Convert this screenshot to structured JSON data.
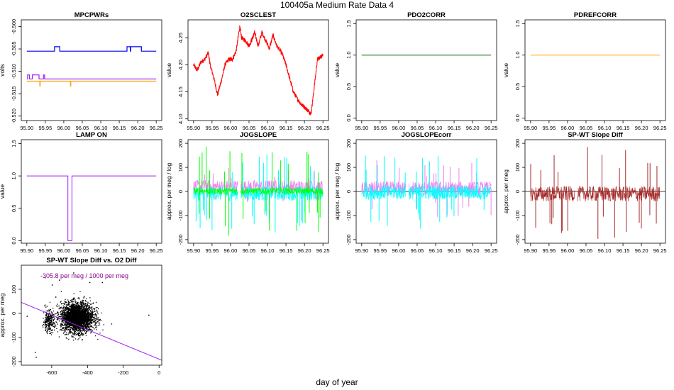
{
  "page": {
    "title": "100405a   Medium Rate Data 4",
    "xlabel": "day of year"
  },
  "chart_data": [
    {
      "id": "mpcpwrs",
      "type": "line",
      "title": "MPCPWRs",
      "ylabel": "volts",
      "xlim": [
        95.885,
        96.265
      ],
      "ylim": [
        -0.521,
        -0.4985
      ],
      "xticks": [
        95.9,
        95.95,
        96.0,
        96.05,
        96.1,
        96.15,
        96.2,
        96.25
      ],
      "xtick_labels": [
        "95.90",
        "95.95",
        "96.00",
        "96.05",
        "96.10",
        "96.15",
        "96.20",
        "96.25"
      ],
      "yticks": [
        -0.52,
        -0.515,
        -0.51,
        -0.505,
        -0.5
      ],
      "ytick_labels": [
        "-0.520",
        "-0.515",
        "-0.510",
        "-0.505",
        "-0.500"
      ],
      "series": [
        {
          "name": "blue",
          "color": "#0000ff",
          "kind": "step",
          "base": -0.5055,
          "x0": 95.9,
          "x1": 96.25,
          "events": [
            [
              95.975,
              95.989,
              -0.5045
            ],
            [
              96.171,
              96.18,
              -0.5045
            ],
            [
              96.181,
              96.21,
              -0.5045
            ]
          ]
        },
        {
          "name": "purple",
          "color": "#a020f0",
          "kind": "step",
          "base": -0.5117,
          "x0": 95.9,
          "x1": 96.25,
          "events": [
            [
              95.902,
              95.907,
              -0.5108
            ],
            [
              95.915,
              95.933,
              -0.5108
            ],
            [
              95.945,
              95.948,
              -0.5108
            ]
          ]
        },
        {
          "name": "orange",
          "color": "#ffa500",
          "kind": "step",
          "base": -0.5122,
          "x0": 95.9,
          "x1": 96.25,
          "events": [
            [
              95.935,
              95.936,
              -0.5133
            ],
            [
              96.018,
              96.019,
              -0.5133
            ]
          ]
        }
      ]
    },
    {
      "id": "o2sclest",
      "type": "line",
      "title": "O2SCLEST",
      "ylabel": "value",
      "xlim": [
        95.885,
        96.265
      ],
      "ylim": [
        4.097,
        4.283
      ],
      "xticks": [
        95.9,
        95.95,
        96.0,
        96.05,
        96.1,
        96.15,
        96.2,
        96.25
      ],
      "xtick_labels": [
        "95.90",
        "95.95",
        "96.00",
        "96.05",
        "96.10",
        "96.15",
        "96.20",
        "96.25"
      ],
      "yticks": [
        4.1,
        4.15,
        4.2,
        4.25
      ],
      "ytick_labels": [
        "4.10",
        "4.15",
        "4.20",
        "4.25"
      ],
      "series": [
        {
          "name": "O2SCLEST",
          "color": "#ff0000",
          "kind": "noisy",
          "noise": 0.004,
          "points": [
            [
              95.9,
              4.2
            ],
            [
              95.91,
              4.19
            ],
            [
              95.92,
              4.205
            ],
            [
              95.93,
              4.21
            ],
            [
              95.94,
              4.222
            ],
            [
              95.945,
              4.2
            ],
            [
              95.955,
              4.175
            ],
            [
              95.965,
              4.145
            ],
            [
              95.975,
              4.17
            ],
            [
              95.985,
              4.2
            ],
            [
              95.995,
              4.21
            ],
            [
              96.005,
              4.21
            ],
            [
              96.015,
              4.225
            ],
            [
              96.025,
              4.27
            ],
            [
              96.03,
              4.25
            ],
            [
              96.04,
              4.245
            ],
            [
              96.05,
              4.235
            ],
            [
              96.06,
              4.25
            ],
            [
              96.065,
              4.26
            ],
            [
              96.075,
              4.235
            ],
            [
              96.085,
              4.26
            ],
            [
              96.095,
              4.245
            ],
            [
              96.105,
              4.23
            ],
            [
              96.115,
              4.255
            ],
            [
              96.125,
              4.235
            ],
            [
              96.14,
              4.22
            ],
            [
              96.15,
              4.2
            ],
            [
              96.16,
              4.175
            ],
            [
              96.17,
              4.15
            ],
            [
              96.18,
              4.138
            ],
            [
              96.19,
              4.128
            ],
            [
              96.2,
              4.122
            ],
            [
              96.21,
              4.115
            ],
            [
              96.218,
              4.11
            ],
            [
              96.225,
              4.15
            ],
            [
              96.235,
              4.21
            ],
            [
              96.245,
              4.215
            ],
            [
              96.25,
              4.22
            ]
          ]
        }
      ]
    },
    {
      "id": "pdo2corr",
      "type": "line",
      "title": "PDO2CORR",
      "ylabel": "value",
      "xlim": [
        95.885,
        96.265
      ],
      "ylim": [
        -0.04,
        1.56
      ],
      "xticks": [
        95.9,
        95.95,
        96.0,
        96.05,
        96.1,
        96.15,
        96.2,
        96.25
      ],
      "xtick_labels": [
        "95.90",
        "95.95",
        "96.00",
        "96.05",
        "96.10",
        "96.15",
        "96.20",
        "96.25"
      ],
      "yticks": [
        0.0,
        0.5,
        1.0,
        1.5
      ],
      "ytick_labels": [
        "0.0",
        "0.5",
        "1.0",
        "1.5"
      ],
      "series": [
        {
          "name": "PDO2CORR",
          "color": "#006400",
          "kind": "points",
          "points": [
            [
              95.9,
              1.0
            ],
            [
              96.25,
              1.0
            ]
          ]
        }
      ]
    },
    {
      "id": "pdrefcorr",
      "type": "line",
      "title": "PDREFCORR",
      "ylabel": "value",
      "xlim": [
        95.885,
        96.265
      ],
      "ylim": [
        -0.04,
        1.56
      ],
      "xticks": [
        95.9,
        95.95,
        96.0,
        96.05,
        96.1,
        96.15,
        96.2,
        96.25
      ],
      "xtick_labels": [
        "95.90",
        "95.95",
        "96.00",
        "96.05",
        "96.10",
        "96.15",
        "96.20",
        "96.25"
      ],
      "yticks": [
        0.0,
        0.5,
        1.0,
        1.5
      ],
      "ytick_labels": [
        "0.0",
        "0.5",
        "1.0",
        "1.5"
      ],
      "series": [
        {
          "name": "PDREFCORR",
          "color": "#ffa500",
          "kind": "points",
          "points": [
            [
              95.9,
              1.0
            ],
            [
              96.25,
              1.0
            ]
          ]
        }
      ]
    },
    {
      "id": "lampon",
      "type": "line",
      "title": "LAMP ON",
      "ylabel": "value",
      "xlim": [
        95.885,
        96.265
      ],
      "ylim": [
        -0.04,
        1.56
      ],
      "xticks": [
        95.9,
        95.95,
        96.0,
        96.05,
        96.1,
        96.15,
        96.2,
        96.25
      ],
      "xtick_labels": [
        "95.90",
        "95.95",
        "96.00",
        "96.05",
        "96.10",
        "96.15",
        "96.20",
        "96.25"
      ],
      "yticks": [
        0.0,
        0.5,
        1.0,
        1.5
      ],
      "ytick_labels": [
        "0.0",
        "0.5",
        "1.0",
        "1.5"
      ],
      "series": [
        {
          "name": "LAMP ON",
          "color": "#a020f0",
          "kind": "points",
          "points": [
            [
              95.9,
              1.0
            ],
            [
              96.011,
              1.0
            ],
            [
              96.011,
              0.0
            ],
            [
              96.022,
              0.0
            ],
            [
              96.022,
              1.0
            ],
            [
              96.25,
              1.0
            ]
          ]
        }
      ]
    },
    {
      "id": "jogslope",
      "type": "line",
      "title": "JOGSLOPE",
      "ylabel": "approx. per meg / log",
      "xlim": [
        95.885,
        96.265
      ],
      "ylim": [
        -215,
        215
      ],
      "xticks": [
        95.9,
        95.95,
        96.0,
        96.05,
        96.1,
        96.15,
        96.2,
        96.25
      ],
      "xtick_labels": [
        "95.90",
        "95.95",
        "96.00",
        "96.05",
        "96.10",
        "96.15",
        "96.20",
        "96.25"
      ],
      "yticks": [
        -200,
        -100,
        0,
        100,
        200
      ],
      "ytick_labels": [
        "-200",
        "-100",
        "0",
        "100",
        "200"
      ],
      "gaps": [
        [
          96.02,
          96.027
        ]
      ],
      "series": [
        {
          "name": "violet",
          "color": "#ee82ee",
          "kind": "band",
          "center": 20,
          "spread": 28,
          "spikes": 18,
          "spikeamp": 80
        },
        {
          "name": "cyan",
          "color": "#00ffff",
          "kind": "band",
          "center": -8,
          "spread": 30,
          "spikes": 30,
          "spikeamp": 170
        },
        {
          "name": "green",
          "color": "#00ff00",
          "kind": "band",
          "center": 2,
          "spread": 14,
          "spikes": 26,
          "spikeamp": 190
        }
      ]
    },
    {
      "id": "jogslopecorr",
      "type": "line",
      "title": "JOGSLOPEcorr",
      "ylabel": "approx. per meg / log",
      "xlim": [
        95.885,
        96.265
      ],
      "ylim": [
        -215,
        215
      ],
      "xticks": [
        95.9,
        95.95,
        96.0,
        96.05,
        96.1,
        96.15,
        96.2,
        96.25
      ],
      "xtick_labels": [
        "95.90",
        "95.95",
        "96.00",
        "96.05",
        "96.10",
        "96.15",
        "96.20",
        "96.25"
      ],
      "yticks": [
        -200,
        -100,
        0,
        100,
        200
      ],
      "ytick_labels": [
        "-200",
        "-100",
        "0",
        "100",
        "200"
      ],
      "hline": 0,
      "gaps": [
        [
          96.02,
          96.027
        ]
      ],
      "series": [
        {
          "name": "violet",
          "color": "#ee82ee",
          "kind": "band",
          "center": 12,
          "spread": 30,
          "spikes": 18,
          "spikeamp": 120
        },
        {
          "name": "cyan",
          "color": "#00ffff",
          "kind": "band",
          "center": -4,
          "spread": 30,
          "spikes": 26,
          "spikeamp": 160
        }
      ]
    },
    {
      "id": "spwt",
      "type": "line",
      "title": "SP-WT Slope Diff",
      "ylabel": "approx. per meg",
      "xlim": [
        95.885,
        96.265
      ],
      "ylim": [
        -215,
        215
      ],
      "xticks": [
        95.9,
        95.95,
        96.0,
        96.05,
        96.1,
        96.15,
        96.2,
        96.25
      ],
      "xtick_labels": [
        "95.90",
        "95.95",
        "96.00",
        "96.05",
        "96.10",
        "96.15",
        "96.20",
        "96.25"
      ],
      "yticks": [
        -200,
        -100,
        0,
        100,
        200
      ],
      "ytick_labels": [
        "-200",
        "-100",
        "0",
        "100",
        "200"
      ],
      "hline": 0,
      "gaps": [
        [
          96.02,
          96.027
        ]
      ],
      "series": [
        {
          "name": "SP-WT",
          "color": "#a52a2a",
          "kind": "band",
          "center": -10,
          "spread": 32,
          "spikes": 26,
          "spikeamp": 200
        }
      ]
    },
    {
      "id": "scatter",
      "type": "scatter",
      "title": "SP-WT Slope Diff vs. O2 Diff",
      "ylabel": "approx. per meg",
      "xlim": [
        -770,
        15
      ],
      "ylim": [
        -215,
        200
      ],
      "xticks": [
        -600,
        -400,
        -200,
        0
      ],
      "xtick_labels": [
        "-600",
        "-400",
        "-200",
        "0"
      ],
      "yticks": [
        -200,
        -100,
        0,
        100
      ],
      "ytick_labels": [
        "-200",
        "-100",
        "0",
        "100"
      ],
      "annotation": "-305.8 per meg / 1000 per meg",
      "annotation_color": "#8b008b",
      "fit": {
        "slope": -0.3058,
        "intercept": -190,
        "color": "#a020f0"
      },
      "clusters": [
        {
          "cx": -460,
          "cy": -15,
          "sx": 45,
          "sy": 30,
          "n": 3000
        },
        {
          "cx": -620,
          "cy": -30,
          "sx": 15,
          "sy": 22,
          "n": 260
        }
      ],
      "outliers": [
        [
          -740,
          -10
        ],
        [
          -695,
          -160
        ],
        [
          -690,
          -180
        ],
        [
          -60,
          -5
        ],
        [
          -320,
          130
        ],
        [
          -560,
          140
        ],
        [
          -640,
          150
        ],
        [
          -390,
          130
        ],
        [
          -480,
          170
        ],
        [
          -600,
          120
        ],
        [
          -580,
          70
        ]
      ]
    }
  ]
}
